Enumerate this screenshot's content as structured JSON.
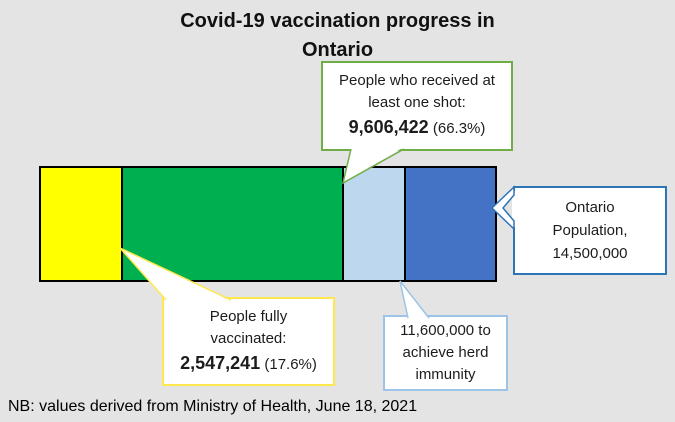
{
  "window": {
    "background_color": "#e5e4e4"
  },
  "title": {
    "line1": "Covid-19 vaccination progress in",
    "line2": "Ontario"
  },
  "footnote": {
    "text": "NB: values derived from Ministry of Health, June 18, 2021"
  },
  "callouts": {
    "one_shot": {
      "line1": "People who received at",
      "line2": "least one shot:",
      "value": "9,606,422",
      "suffix": " (66.3%)",
      "border_color": "#70ad47"
    },
    "fully_vaccinated": {
      "line1": "People fully",
      "line2": "vaccinated:",
      "value": "2,547,241",
      "suffix": " (17.6%)",
      "border_color": "#ffe84d"
    },
    "population": {
      "line1": "Ontario",
      "line2": "Population,",
      "line3": "14,500,000",
      "border_color": "#2e75b6"
    },
    "herd_immunity": {
      "line1": "11,600,000 to",
      "line2": "achieve herd",
      "line3": "immunity",
      "border_color": "#9dc3e6"
    }
  },
  "chart_data": {
    "type": "bar",
    "subtype": "single-horizontal-stacked-bar",
    "title": "Covid-19 vaccination progress in Ontario",
    "footnote": "NB: values derived from Ministry of Health, June 18, 2021",
    "total_population": 14500000,
    "legend_position": "callout-labels",
    "grid": false,
    "axes_visible": false,
    "segments": [
      {
        "label": "People fully vaccinated",
        "value": 2547241,
        "cumulative": 2547241,
        "cumulative_percent": 17.6,
        "color": "#ffff00"
      },
      {
        "label": "Received at least one shot (beyond fully vaccinated)",
        "value": 7059181,
        "cumulative": 9606422,
        "cumulative_percent": 66.3,
        "color": "#00b050"
      },
      {
        "label": "Gap to herd immunity threshold",
        "value": 1993578,
        "cumulative": 11600000,
        "cumulative_percent": 80.0,
        "color": "#bdd7ee"
      },
      {
        "label": "Remaining population",
        "value": 2900000,
        "cumulative": 14500000,
        "cumulative_percent": 100.0,
        "color": "#4472c4"
      }
    ],
    "annotations": [
      {
        "text": "People who received at least one shot: 9,606,422 (66.3%)",
        "points_to": "end of green segment"
      },
      {
        "text": "People fully vaccinated: 2,547,241 (17.6%)",
        "points_to": "end of yellow segment"
      },
      {
        "text": "11,600,000 to achieve herd immunity",
        "points_to": "light blue segment"
      },
      {
        "text": "Ontario Population, 14,500,000",
        "points_to": "right end of bar"
      }
    ]
  }
}
